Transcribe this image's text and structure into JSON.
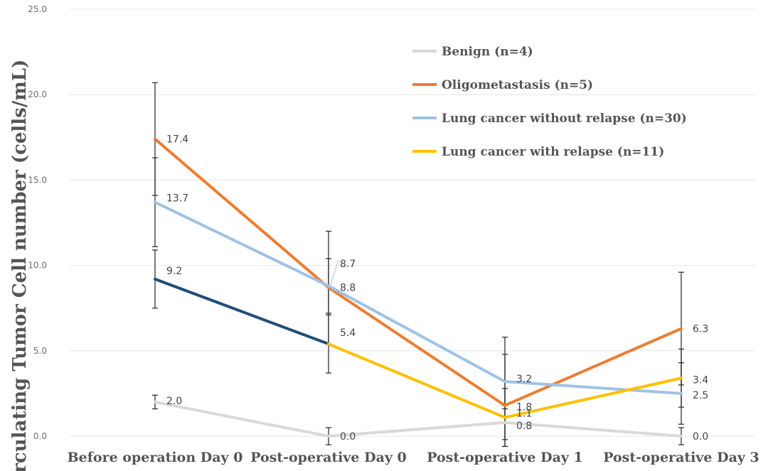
{
  "chart_data": {
    "type": "line",
    "title": "",
    "xlabel": "",
    "ylabel": "Circulating Tumor Cell number (cells/mL)",
    "ylim": [
      0,
      25
    ],
    "yticks": [
      "0.0",
      "5.0",
      "10.0",
      "15.0",
      "20.0",
      "25.0"
    ],
    "grid": "horizontal",
    "legend_position": "top-right",
    "categories": [
      "Before operation Day 0",
      "Post-operative Day 0",
      "Post-operative Day 1",
      "Post-operative Day 3"
    ],
    "series": [
      {
        "name": "Benign (n=4)",
        "color": "#d9d9d9",
        "values": [
          2.0,
          0.0,
          0.8,
          0.0
        ],
        "labels": [
          "2.0",
          "0.0",
          "0.8",
          "0.0"
        ],
        "error": [
          0.4,
          0.5,
          1.0,
          0.5
        ]
      },
      {
        "name": "Oligometastasis (n=5)",
        "color": "#ed7d31",
        "values": [
          17.4,
          8.7,
          1.8,
          6.3
        ],
        "labels": [
          "17.4",
          "8.7",
          "1.8",
          "6.3"
        ],
        "error": [
          3.3,
          3.3,
          4.0,
          3.3
        ]
      },
      {
        "name": "Lung cancer without relapse (n=30)",
        "color": "#9dc3e6",
        "values": [
          13.7,
          8.8,
          3.2,
          2.5
        ],
        "labels": [
          "13.7",
          "8.8",
          "3.2",
          "2.5"
        ],
        "error": [
          2.6,
          1.6,
          1.6,
          1.8
        ]
      },
      {
        "name": "Lung cancer with relapse (n=11)",
        "color": "#ffc000",
        "segment_colors": [
          "#1f4e79",
          "#ffc000",
          "#ffc000"
        ],
        "values": [
          9.2,
          5.4,
          1.1,
          3.4
        ],
        "labels": [
          "9.2",
          "5.4",
          "1.1",
          "3.4"
        ],
        "error": [
          1.7,
          1.7,
          1.7,
          1.7
        ]
      }
    ]
  }
}
